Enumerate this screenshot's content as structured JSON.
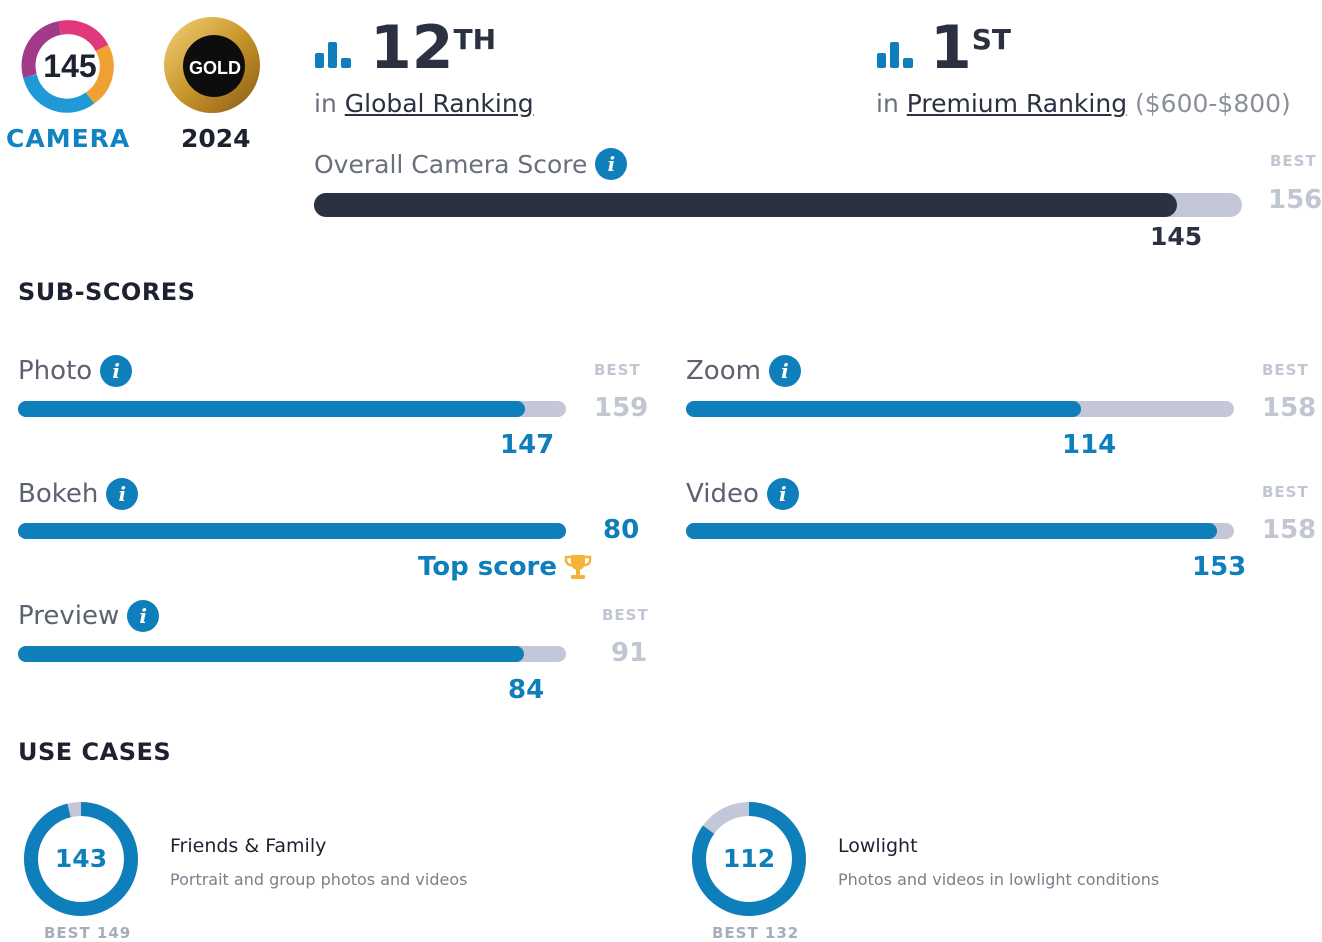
{
  "badges": {
    "camera_score": "145",
    "camera_label": "CAMERA",
    "gold_label": "GOLD",
    "year": "2024"
  },
  "rankings": [
    {
      "number": "12",
      "suffix": "TH",
      "prefix": "in",
      "link": "Global Ranking",
      "extra": ""
    },
    {
      "number": "1",
      "suffix": "ST",
      "prefix": "in",
      "link": "Premium Ranking",
      "extra": "($600-$800)"
    }
  ],
  "overall": {
    "label": "Overall Camera Score",
    "score": 145,
    "score_text": "145",
    "best_label": "BEST",
    "best": 156,
    "best_text": "156"
  },
  "subscores": {
    "title": "SUB-SCORES",
    "best_label": "BEST",
    "items": [
      {
        "label": "Photo",
        "score": 147,
        "score_text": "147",
        "best": 159,
        "best_text": "159",
        "top": false
      },
      {
        "label": "Zoom",
        "score": 114,
        "score_text": "114",
        "best": 158,
        "best_text": "158",
        "top": false
      },
      {
        "label": "Bokeh",
        "score": 80,
        "score_text": "80",
        "best": 80,
        "best_text": "",
        "top": true
      },
      {
        "label": "Video",
        "score": 153,
        "score_text": "153",
        "best": 158,
        "best_text": "158",
        "top": false
      },
      {
        "label": "Preview",
        "score": 84,
        "score_text": "84",
        "best": 91,
        "best_text": "91",
        "top": false
      }
    ],
    "top_score_label": "Top score"
  },
  "use_cases": {
    "title": "USE CASES",
    "items": [
      {
        "name": "Friends & Family",
        "desc": "Portrait and group photos and videos",
        "score": 143,
        "score_text": "143",
        "best": 149,
        "best_text": "BEST 149"
      },
      {
        "name": "Lowlight",
        "desc": "Photos and videos in lowlight conditions",
        "score": 112,
        "score_text": "112",
        "best": 132,
        "best_text": "BEST 132"
      }
    ]
  },
  "colors": {
    "accent": "#0f7fbc",
    "dark": "#2c3142",
    "track": "#c4c7d8",
    "gold": "#c9962b"
  },
  "icons": [
    "ranking-bars-icon",
    "info-icon",
    "trophy-icon"
  ]
}
